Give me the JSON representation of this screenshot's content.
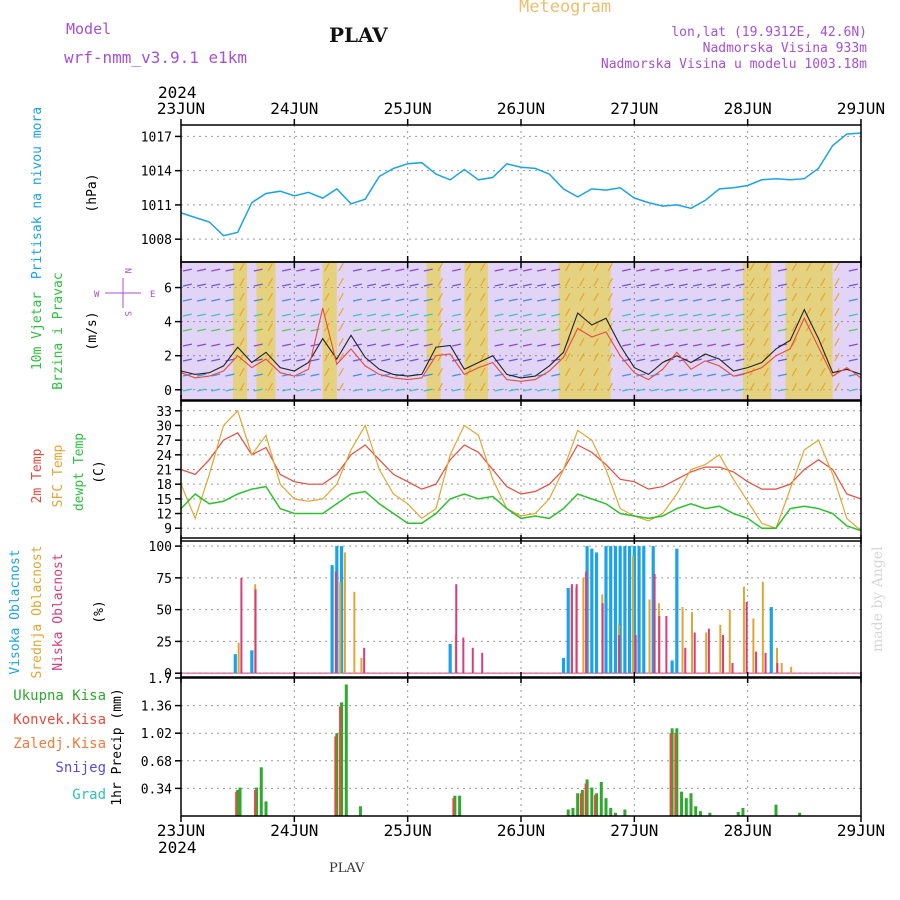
{
  "header": {
    "model_label": "Model",
    "model_name": "wrf-nmm_v3.9.1 e1km",
    "station": "PLAV",
    "product": "Meteogram",
    "lonlat": "lon,lat (19.9312E, 42.6N)",
    "altitude": "Nadmorska Visina 933m",
    "model_altitude": "Nadmorska Visina u modelu 1003.18m",
    "footer_station": "PLAV",
    "credit": "made by Angel"
  },
  "time_axis": {
    "year": "2024",
    "labels": [
      "23JUN",
      "24JUN",
      "25JUN",
      "26JUN",
      "27JUN",
      "28JUN",
      "29JUN"
    ]
  },
  "colors": {
    "pressure": "#1aa3e8",
    "temp_2m": "#e84a3c",
    "temp_sfc": "#e0a632",
    "dewpoint": "#2ec02e",
    "cloud_high": "#1aa3e8",
    "cloud_mid": "#e0a632",
    "cloud_low": "#d83c7c",
    "precip_total": "#2ea82e",
    "precip_conv": "#e84a3c",
    "precip_frozen": "#f07c3a",
    "snow": "#5a4ae0",
    "graupel": "#2ec0b8",
    "wind_speed": "#222222",
    "wind_gust": "#e84a3c"
  },
  "compass": {
    "n": "N",
    "s": "S",
    "w": "W",
    "e": "E"
  },
  "chart_data": [
    {
      "type": "line",
      "ylabel": [
        "Pritisak na nivou mora",
        "(hPa)"
      ],
      "ylim": [
        1006,
        1018
      ],
      "yticks": [
        "1008",
        "1011",
        "1014",
        "1017"
      ],
      "series": [
        {
          "x": [
            0,
            3,
            6,
            9,
            12,
            15,
            18,
            21,
            24,
            27,
            30,
            33,
            36,
            39,
            42,
            45,
            48,
            51,
            54,
            57,
            60,
            63,
            66,
            69,
            72,
            75,
            78,
            81,
            84,
            87,
            90,
            93,
            96,
            99,
            102,
            105,
            108,
            111,
            114,
            117,
            120,
            123,
            126,
            129,
            132,
            135,
            138,
            141,
            144
          ],
          "values": [
            1010.3,
            1009.9,
            1009.5,
            1008.3,
            1008.6,
            1011.2,
            1012,
            1012.2,
            1011.8,
            1012.1,
            1011.6,
            1012.4,
            1011.1,
            1011.5,
            1013.5,
            1014.2,
            1014.6,
            1014.7,
            1013.7,
            1013.2,
            1014.1,
            1013.2,
            1013.4,
            1014.6,
            1014.3,
            1014.2,
            1013.7,
            1012.4,
            1011.7,
            1012.4,
            1012.3,
            1012.5,
            1011.6,
            1011.2,
            1010.9,
            1011,
            1010.7,
            1011.4,
            1012.4,
            1012.5,
            1012.7,
            1013.2,
            1013.3,
            1013.2,
            1013.3,
            1014.2,
            1016.2,
            1017.2,
            1017.3
          ]
        }
      ]
    },
    {
      "type": "line",
      "ylabel": [
        "10m Vjetar",
        "Brzina i Pravac",
        "(m/s)"
      ],
      "ylim": [
        -0.6,
        7.5
      ],
      "yticks": [
        "0",
        "2",
        "4",
        "6"
      ],
      "series": [
        {
          "x": [
            0,
            3,
            6,
            9,
            12,
            15,
            18,
            21,
            24,
            27,
            30,
            33,
            36,
            39,
            42,
            45,
            48,
            51,
            54,
            57,
            60,
            63,
            66,
            69,
            72,
            75,
            78,
            81,
            84,
            87,
            90,
            93,
            96,
            99,
            102,
            105,
            108,
            111,
            114,
            117,
            120,
            123,
            126,
            129,
            132,
            135,
            138,
            141,
            144
          ],
          "values": [
            1.1,
            0.9,
            1,
            1.4,
            2.5,
            1.6,
            2.2,
            1.3,
            1.1,
            1.6,
            3,
            1.8,
            3.2,
            1.9,
            1.2,
            0.9,
            0.8,
            0.9,
            2.5,
            2.6,
            1.2,
            1.6,
            2,
            0.9,
            0.7,
            0.8,
            1.4,
            2.2,
            4.5,
            3.8,
            4.2,
            2.6,
            1.3,
            0.9,
            1.6,
            2,
            1.6,
            2.1,
            1.8,
            1.1,
            1.3,
            1.6,
            2.4,
            2.9,
            4.7,
            3,
            1,
            1.2,
            0.9
          ]
        },
        {
          "x": [
            0,
            3,
            6,
            9,
            12,
            15,
            18,
            21,
            24,
            27,
            30,
            33,
            36,
            39,
            42,
            45,
            48,
            51,
            54,
            57,
            60,
            63,
            66,
            69,
            72,
            75,
            78,
            81,
            84,
            87,
            90,
            93,
            96,
            99,
            102,
            105,
            108,
            111,
            114,
            117,
            120,
            123,
            126,
            129,
            132,
            135,
            138,
            141,
            144
          ],
          "values": [
            1,
            0.7,
            0.8,
            1.1,
            2,
            1.3,
            1.8,
            1,
            0.8,
            1.2,
            4.8,
            1.5,
            2.4,
            1.4,
            0.9,
            0.7,
            0.6,
            0.7,
            2,
            2.1,
            0.9,
            1.3,
            1.6,
            0.6,
            0.5,
            0.6,
            1.1,
            1.9,
            3.6,
            3.1,
            3.4,
            2,
            1,
            0.6,
            1.2,
            2.2,
            1.2,
            1.7,
            1.4,
            0.8,
            1,
            1.3,
            2,
            2.4,
            4.2,
            2.5,
            0.8,
            1.3,
            0.7
          ]
        }
      ]
    },
    {
      "type": "line",
      "ylabel": [
        "2m Temp",
        "SFC Temp",
        "dewpt Temp",
        "(C)"
      ],
      "ylim": [
        7,
        35
      ],
      "yticks": [
        "9",
        "12",
        "15",
        "18",
        "21",
        "24",
        "27",
        "30",
        "33"
      ],
      "series": [
        {
          "name": "2m Temp",
          "x": [
            0,
            3,
            6,
            9,
            12,
            15,
            18,
            21,
            24,
            27,
            30,
            33,
            36,
            39,
            42,
            45,
            48,
            51,
            54,
            57,
            60,
            63,
            66,
            69,
            72,
            75,
            78,
            81,
            84,
            87,
            90,
            93,
            96,
            99,
            102,
            105,
            108,
            111,
            114,
            117,
            120,
            123,
            126,
            129,
            132,
            135,
            138,
            141,
            144
          ],
          "values": [
            21,
            20,
            23,
            27,
            28.5,
            24,
            25.5,
            20,
            18.5,
            18,
            18,
            20,
            24,
            26,
            23,
            20,
            18.5,
            17,
            18,
            23,
            26,
            24.5,
            21,
            17.5,
            16,
            16.5,
            18,
            21,
            26,
            24.5,
            22,
            19,
            18.5,
            17,
            17.5,
            19,
            20.5,
            21.5,
            21.5,
            20.5,
            18.5,
            17,
            17,
            18,
            21,
            23,
            21,
            16,
            15
          ]
        },
        {
          "name": "SFC Temp",
          "x": [
            0,
            3,
            6,
            9,
            12,
            15,
            18,
            21,
            24,
            27,
            30,
            33,
            36,
            39,
            42,
            45,
            48,
            51,
            54,
            57,
            60,
            63,
            66,
            69,
            72,
            75,
            78,
            81,
            84,
            87,
            90,
            93,
            96,
            99,
            102,
            105,
            108,
            111,
            114,
            117,
            120,
            123,
            126,
            129,
            132,
            135,
            138,
            141,
            144
          ],
          "values": [
            18,
            11,
            20,
            30,
            33,
            24,
            28,
            18,
            15,
            14.5,
            15,
            18,
            25,
            30,
            21,
            16,
            14,
            11,
            13,
            24,
            30,
            28,
            19,
            13,
            11.5,
            12,
            15,
            21,
            29,
            27,
            21,
            13,
            11.5,
            10.5,
            12,
            16,
            21,
            22,
            24,
            19,
            14.5,
            10,
            9,
            17,
            25,
            27,
            20,
            11,
            8.5
          ]
        },
        {
          "name": "dewpt Temp",
          "x": [
            0,
            3,
            6,
            9,
            12,
            15,
            18,
            21,
            24,
            27,
            30,
            33,
            36,
            39,
            42,
            45,
            48,
            51,
            54,
            57,
            60,
            63,
            66,
            69,
            72,
            75,
            78,
            81,
            84,
            87,
            90,
            93,
            96,
            99,
            102,
            105,
            108,
            111,
            114,
            117,
            120,
            123,
            126,
            129,
            132,
            135,
            138,
            141,
            144
          ],
          "values": [
            13,
            16,
            14,
            14.5,
            16,
            17,
            17.5,
            13,
            12,
            12,
            12,
            14,
            16,
            16.5,
            14,
            12,
            10,
            10,
            12,
            15,
            16,
            15,
            15.5,
            13,
            11,
            11.5,
            11,
            13,
            16,
            15,
            14,
            12,
            11.5,
            11,
            11.5,
            13,
            14,
            13,
            13.5,
            12,
            11,
            9,
            9,
            13,
            13.5,
            13,
            12,
            9.5,
            8.5
          ]
        }
      ]
    },
    {
      "type": "bar",
      "ylabel": [
        "Visoka Oblacnost",
        "Srednja Oblacnost",
        "Niska Oblacnost",
        "(%)"
      ],
      "ylim": [
        -3,
        104
      ],
      "yticks": [
        "0",
        "25",
        "50",
        "75",
        "100"
      ],
      "series": [
        {
          "name": "Visoka Oblacnost",
          "x": [
            11.5,
            15,
            32,
            33,
            34,
            57,
            81,
            82,
            86,
            87,
            88,
            90,
            91,
            92,
            93,
            94,
            95,
            96,
            97,
            98,
            100,
            104,
            105,
            125
          ],
          "values": [
            15,
            18,
            85,
            100,
            100,
            23,
            12,
            67,
            100,
            98,
            95,
            100,
            100,
            100,
            100,
            100,
            100,
            100,
            100,
            100,
            100,
            10,
            98,
            52
          ]
        },
        {
          "name": "Srednja Oblacnost",
          "x": [
            12,
            15.5,
            33.5,
            34.5,
            36.5,
            38,
            58,
            82.5,
            83.5,
            85,
            89,
            92.5,
            95.5,
            99,
            101,
            106,
            108,
            111,
            114,
            116,
            119,
            121,
            123,
            126,
            127,
            129
          ],
          "values": [
            24,
            70,
            72,
            95,
            64,
            12,
            30,
            68,
            67,
            75,
            62,
            38,
            92,
            58,
            55,
            52,
            48,
            32,
            38,
            50,
            68,
            43,
            72,
            20,
            8,
            5
          ]
        },
        {
          "name": "Niska Oblacnost",
          "x": [
            13,
            16,
            33,
            39,
            58.5,
            60,
            62,
            64,
            83,
            84,
            86,
            89.5,
            93,
            96.5,
            100.5,
            101.5,
            103,
            107,
            109,
            112,
            115,
            117,
            120,
            122,
            124,
            126.5
          ],
          "values": [
            75,
            66,
            80,
            20,
            70,
            28,
            20,
            16,
            70,
            70,
            80,
            55,
            30,
            30,
            78,
            45,
            45,
            20,
            32,
            35,
            30,
            8,
            56,
            17,
            16,
            8
          ]
        }
      ]
    },
    {
      "type": "bar",
      "ylabel": [
        "Ukupna Kisa",
        "Konvek.Kisa",
        "Zaledj.Kisa",
        "Snijeg",
        "Grad",
        "1hr Precip (mm)"
      ],
      "ylim": [
        0,
        1.7
      ],
      "yticks": [
        "0.34",
        "0.68",
        "1.02",
        "1.36",
        "1.7"
      ],
      "series": [
        {
          "name": "Ukupna Kisa",
          "x": [
            12,
            12.5,
            16,
            17,
            18,
            33,
            34,
            35,
            38,
            58,
            59,
            82,
            83,
            84,
            85,
            86,
            87,
            88,
            89,
            90,
            91,
            92,
            94,
            104,
            105,
            106,
            107,
            108,
            109,
            110,
            112,
            118,
            119,
            126,
            131
          ],
          "values": [
            0.32,
            0.35,
            0.35,
            0.6,
            0.18,
            1.02,
            1.4,
            1.62,
            0.12,
            0.25,
            0.25,
            0.08,
            0.1,
            0.28,
            0.32,
            0.45,
            0.35,
            0.28,
            0.42,
            0.22,
            0.1,
            0.04,
            0.08,
            1.08,
            1.08,
            0.3,
            0.22,
            0.28,
            0.12,
            0.06,
            0.04,
            0.05,
            0.1,
            0.14,
            0.04
          ]
        },
        {
          "name": "Konvek.Kisa",
          "x": [
            12,
            16,
            33,
            34,
            58,
            85,
            86,
            88,
            104,
            105
          ],
          "values": [
            0.3,
            0.32,
            0.98,
            1.35,
            0.22,
            0.28,
            0.4,
            0.26,
            1.02,
            1.02
          ]
        }
      ]
    }
  ]
}
